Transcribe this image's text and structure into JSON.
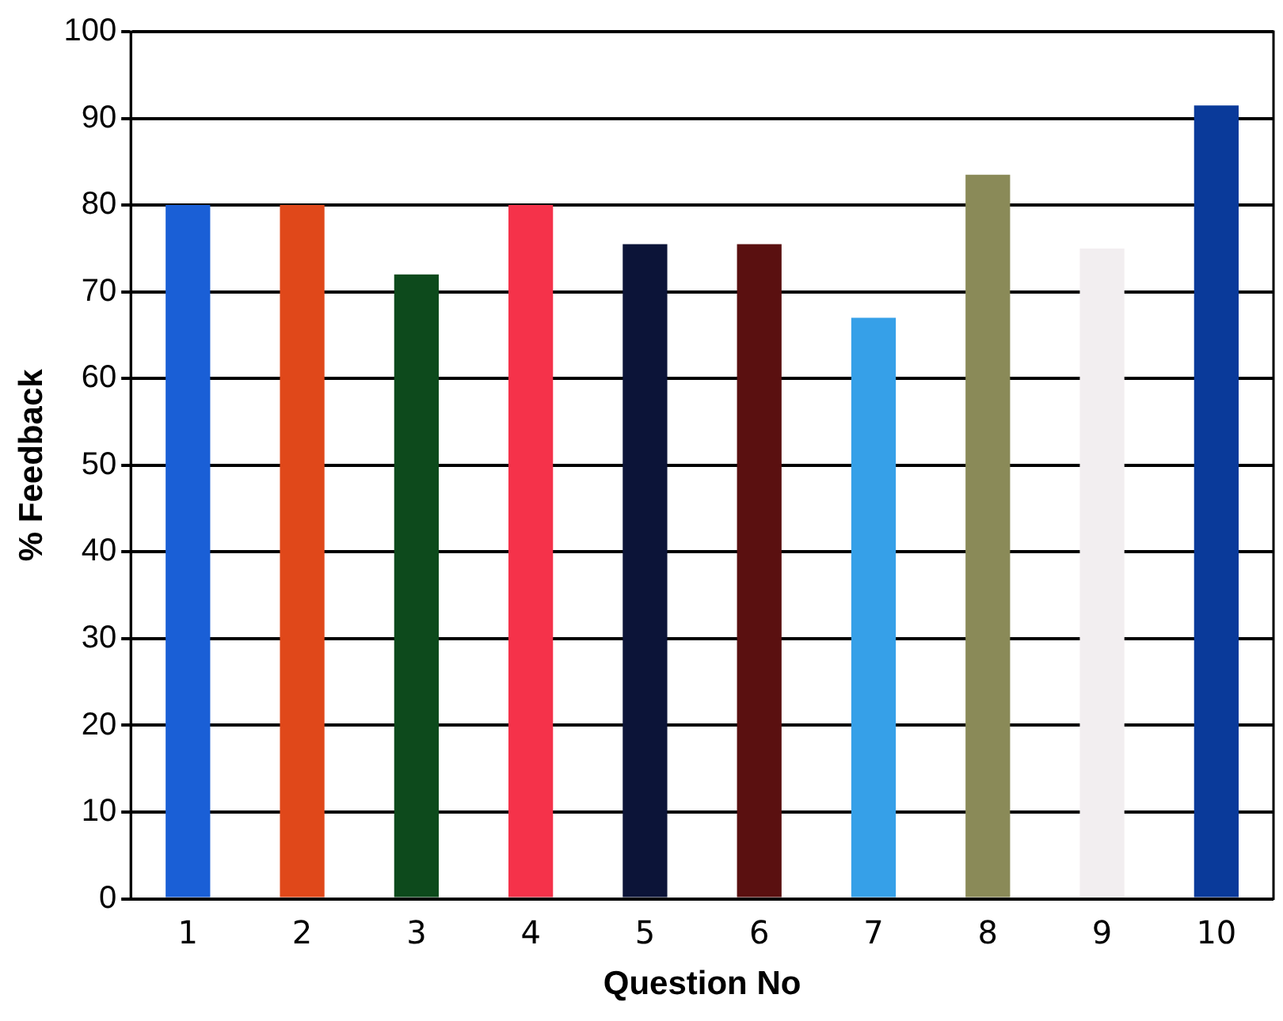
{
  "chart_data": {
    "type": "bar",
    "xlabel": "Question No",
    "ylabel": "% Feedback",
    "categories": [
      "1",
      "2",
      "3",
      "4",
      "5",
      "6",
      "7",
      "8",
      "9",
      "10"
    ],
    "values": [
      80,
      80,
      72,
      80,
      75.5,
      75.5,
      67,
      83.5,
      75,
      91.5
    ],
    "colors": [
      "#1a5fd6",
      "#e0481a",
      "#0d4a1c",
      "#f5324a",
      "#0c1438",
      "#5a1010",
      "#36a0e8",
      "#8a8a58",
      "#f2eef0",
      "#0a3a9a"
    ],
    "ylim": [
      0,
      100
    ],
    "yticks": [
      0,
      10,
      20,
      30,
      40,
      50,
      60,
      70,
      80,
      90,
      100
    ],
    "grid": "y",
    "legend": false
  }
}
